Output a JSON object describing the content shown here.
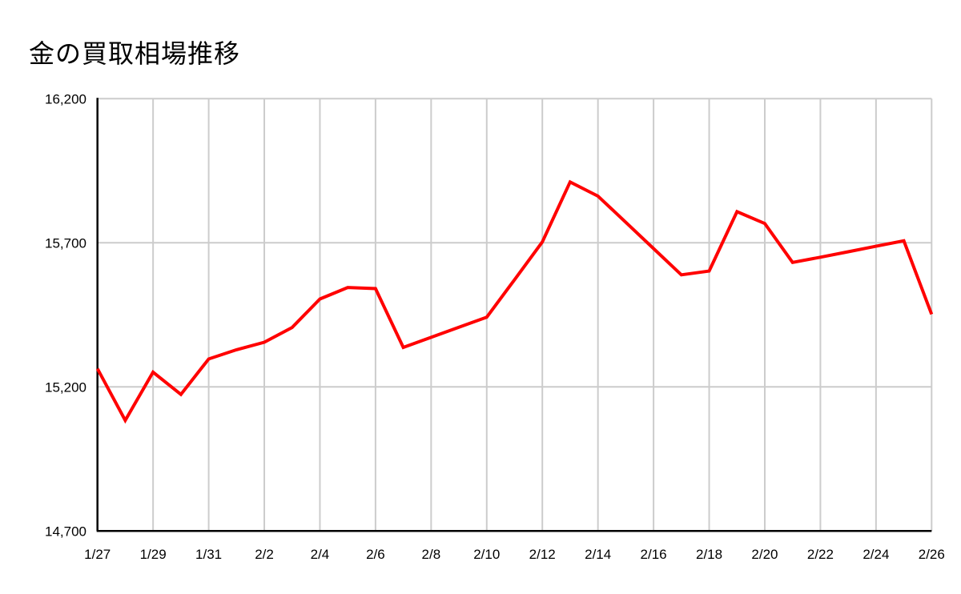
{
  "header": {
    "title": "金の買取相場推移"
  },
  "chart_data": {
    "type": "line",
    "title": "金の買取相場推移",
    "x": [
      "1/27",
      "1/28",
      "1/29",
      "1/30",
      "1/31",
      "2/1",
      "2/2",
      "2/3",
      "2/4",
      "2/5",
      "2/6",
      "2/7",
      "2/8",
      "2/9",
      "2/10",
      "2/11",
      "2/12",
      "2/13",
      "2/14",
      "2/15",
      "2/16",
      "2/17",
      "2/18",
      "2/19",
      "2/20",
      "2/21",
      "2/22",
      "2/23",
      "2/24",
      "2/25",
      "2/26"
    ],
    "values": [
      15263,
      15084,
      15251,
      15174,
      15297,
      15329,
      15355,
      15406,
      15505,
      15545,
      15541,
      15337,
      15372,
      15407,
      15442,
      15572,
      15703,
      15911,
      15862,
      15771,
      15680,
      15589,
      15602,
      15808,
      15767,
      15632,
      15650,
      15669,
      15688,
      15707,
      15452
    ],
    "x_tick_labels": [
      "1/27",
      "1/29",
      "1/31",
      "2/2",
      "2/4",
      "2/6",
      "2/8",
      "2/10",
      "2/12",
      "2/14",
      "2/16",
      "2/18",
      "2/20",
      "2/22",
      "2/24",
      "2/26"
    ],
    "x_tick_every_n_points": 2,
    "y_ticks": [
      14700,
      15200,
      15700,
      16200
    ],
    "y_tick_labels": [
      "14,700",
      "15,200",
      "15,700",
      "16,200"
    ],
    "ylim": [
      14700,
      16200
    ],
    "grid": true,
    "legend_position": "none",
    "xlabel": "",
    "ylabel": "",
    "colors": {
      "line": "#ff0000",
      "gridline": "#cccccc",
      "axis": "#000000",
      "text": "#000000",
      "background": "#ffffff"
    }
  }
}
